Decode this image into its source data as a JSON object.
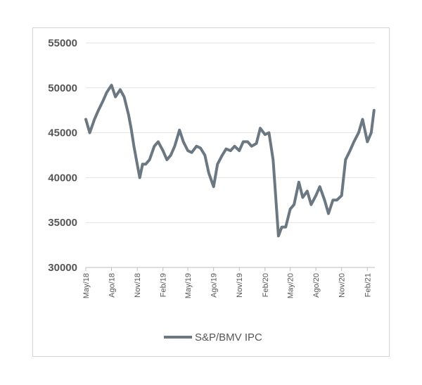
{
  "chart_data": {
    "type": "line",
    "title": "",
    "xlabel": "",
    "ylabel": "",
    "ylim": [
      30000,
      55000
    ],
    "yticks": [
      "55000",
      "50000",
      "45000",
      "40000",
      "35000",
      "30000"
    ],
    "xtick_labels": [
      "May/18",
      "Ago/18",
      "Nov/18",
      "Feb/19",
      "May/19",
      "Ago/19",
      "Nov/19",
      "Feb/20",
      "May/20",
      "Ago/20",
      "Nov/20",
      "Feb/21"
    ],
    "grid": true,
    "legend_position": "bottom",
    "series": [
      {
        "name": "S&P/BMV IPC",
        "color": "#6b7781",
        "x": [
          "2018-05-01",
          "2018-05-15",
          "2018-06-01",
          "2018-06-15",
          "2018-07-01",
          "2018-07-15",
          "2018-08-01",
          "2018-08-15",
          "2018-09-01",
          "2018-09-15",
          "2018-10-01",
          "2018-10-10",
          "2018-10-20",
          "2018-11-01",
          "2018-11-10",
          "2018-11-20",
          "2018-12-01",
          "2018-12-15",
          "2019-01-01",
          "2019-01-15",
          "2019-02-01",
          "2019-02-15",
          "2019-03-01",
          "2019-03-15",
          "2019-04-01",
          "2019-04-15",
          "2019-05-01",
          "2019-05-15",
          "2019-06-01",
          "2019-06-15",
          "2019-07-01",
          "2019-07-15",
          "2019-08-01",
          "2019-08-15",
          "2019-09-01",
          "2019-09-15",
          "2019-10-01",
          "2019-10-15",
          "2019-11-01",
          "2019-11-15",
          "2019-12-01",
          "2019-12-15",
          "2020-01-01",
          "2020-01-15",
          "2020-02-01",
          "2020-02-15",
          "2020-03-01",
          "2020-03-10",
          "2020-03-20",
          "2020-04-01",
          "2020-04-15",
          "2020-05-01",
          "2020-05-15",
          "2020-06-01",
          "2020-06-15",
          "2020-07-01",
          "2020-07-15",
          "2020-08-01",
          "2020-08-15",
          "2020-09-01",
          "2020-09-15",
          "2020-10-01",
          "2020-10-15",
          "2020-11-01",
          "2020-11-15",
          "2020-12-01",
          "2020-12-15",
          "2021-01-01",
          "2021-01-15",
          "2021-02-01",
          "2021-02-15",
          "2021-02-25"
        ],
        "values": [
          46500,
          45000,
          46500,
          47500,
          48500,
          49500,
          50300,
          49000,
          49800,
          49000,
          47000,
          45500,
          43500,
          41500,
          40000,
          41500,
          41500,
          42000,
          43500,
          44000,
          43000,
          42000,
          42500,
          43500,
          45300,
          44000,
          43000,
          42800,
          43500,
          43300,
          42500,
          40500,
          39000,
          41500,
          42500,
          43200,
          43000,
          43500,
          43000,
          44000,
          44000,
          43500,
          43800,
          45500,
          44800,
          45000,
          42000,
          38000,
          33500,
          34500,
          34500,
          36500,
          37000,
          39500,
          37800,
          38500,
          37000,
          38000,
          39000,
          37500,
          36000,
          37500,
          37500,
          38000,
          42000,
          43000,
          44000,
          45000,
          46500,
          44000,
          45000,
          47500
        ]
      }
    ]
  }
}
